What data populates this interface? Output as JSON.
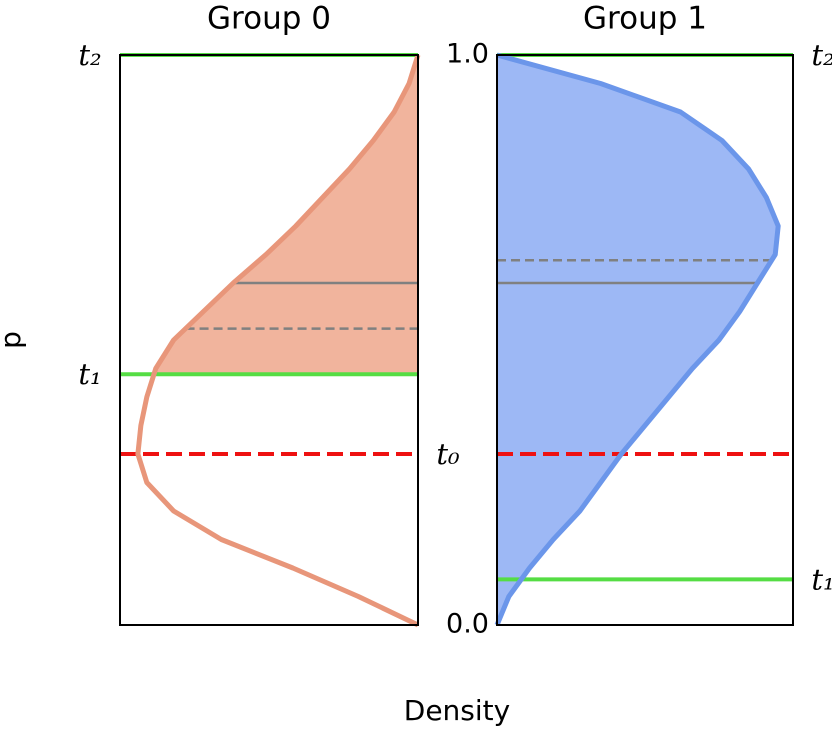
{
  "chart_data": [
    {
      "type": "area",
      "title": "Group 0",
      "ylabel": "p",
      "xlim": [
        1,
        0
      ],
      "ylim": [
        0,
        1
      ],
      "series": [
        {
          "color": "#e8967a",
          "fill": "#f1b49d",
          "y": [
            0,
            0.05,
            0.1,
            0.15,
            0.2,
            0.25,
            0.3,
            0.35,
            0.4,
            0.45,
            0.5,
            0.55,
            0.6,
            0.65,
            0.7,
            0.75,
            0.8,
            0.85,
            0.9,
            0.95,
            1
          ],
          "values": [
            0,
            0.2,
            0.42,
            0.66,
            0.82,
            0.91,
            0.94,
            0.93,
            0.91,
            0.88,
            0.82,
            0.72,
            0.62,
            0.51,
            0.41,
            0.32,
            0.23,
            0.15,
            0.08,
            0.03,
            0
          ],
          "fill_range": [
            0.44,
            1
          ]
        }
      ],
      "lines": [
        {
          "value": 1,
          "color": "#55dd44",
          "style": "solid",
          "label": "t₂",
          "label_side": "left",
          "extent": "panel"
        },
        {
          "value": 0.44,
          "color": "#55dd44",
          "style": "solid",
          "label": "t₁",
          "label_side": "left",
          "extent": "panel"
        },
        {
          "value": 0.3,
          "color": "#ee1111",
          "style": "dashed",
          "label": "t₀",
          "label_side": "right",
          "extent": "panel"
        },
        {
          "value": 0.6,
          "color": "#808080",
          "style": "solid",
          "extent": "curve"
        },
        {
          "value": 0.52,
          "color": "#808080",
          "style": "dashed",
          "extent": "curve"
        }
      ]
    },
    {
      "type": "area",
      "title": "Group 1",
      "xlabel": "Density",
      "xlim": [
        0,
        1
      ],
      "ylim": [
        0,
        1
      ],
      "yticks": [
        {
          "value": 0,
          "label": "0.0"
        },
        {
          "value": 1,
          "label": "1.0"
        }
      ],
      "series": [
        {
          "color": "#6b96ea",
          "fill": "#9db8f5",
          "y": [
            0,
            0.05,
            0.1,
            0.15,
            0.2,
            0.25,
            0.3,
            0.35,
            0.4,
            0.45,
            0.5,
            0.55,
            0.6,
            0.65,
            0.7,
            0.75,
            0.8,
            0.85,
            0.9,
            0.95,
            1
          ],
          "values": [
            0,
            0.04,
            0.11,
            0.19,
            0.28,
            0.35,
            0.42,
            0.5,
            0.58,
            0.66,
            0.75,
            0.82,
            0.88,
            0.94,
            0.95,
            0.91,
            0.85,
            0.76,
            0.62,
            0.35,
            0
          ],
          "fill_range": [
            0,
            1
          ]
        }
      ],
      "lines": [
        {
          "value": 1,
          "color": "#55dd44",
          "style": "solid",
          "label": "t₂",
          "label_side": "right",
          "extent": "panel"
        },
        {
          "value": 0.08,
          "color": "#55dd44",
          "style": "solid",
          "label": "t₁",
          "label_side": "right",
          "extent": "panel"
        },
        {
          "value": 0.3,
          "color": "#ee1111",
          "style": "dashed",
          "extent": "panel"
        },
        {
          "value": 0.64,
          "color": "#808080",
          "style": "dashed",
          "extent": "curve"
        },
        {
          "value": 0.6,
          "color": "#808080",
          "style": "solid",
          "extent": "curve"
        }
      ]
    }
  ]
}
